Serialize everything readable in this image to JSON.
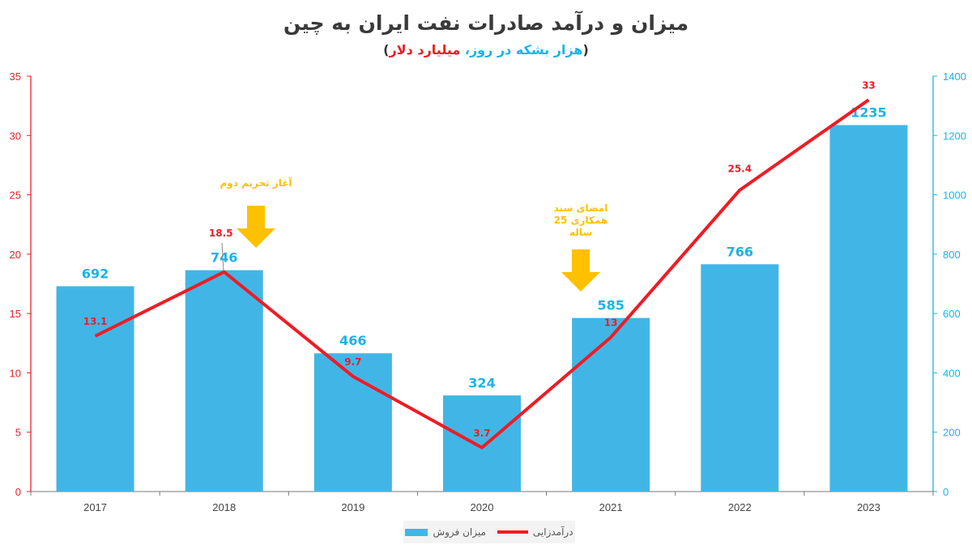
{
  "title": "میزان و درآمد صادرات نفت ایران به چین",
  "subtitle": {
    "open": "(",
    "part1": "هزار بشکه در روز،",
    "part2": "میلیارد دلار",
    "close": ")"
  },
  "colors": {
    "bar": "#41b6e6",
    "line": "#ee1c25",
    "left_axis": "#e8202a",
    "right_axis": "#19b5e5",
    "annotation": "#ffc000"
  },
  "chart_data": {
    "type": "bar+line",
    "categories": [
      "2017",
      "2018",
      "2019",
      "2020",
      "2021",
      "2022",
      "2023"
    ],
    "series": [
      {
        "name": "میزان فروش",
        "type": "bar",
        "axis": "right",
        "values": [
          692,
          746,
          466,
          324,
          585,
          766,
          1235
        ]
      },
      {
        "name": "درآمدزایی",
        "type": "line",
        "axis": "left",
        "values": [
          13.1,
          18.5,
          9.7,
          3.7,
          13,
          25.4,
          33
        ]
      }
    ],
    "left_axis": {
      "ylim": [
        0,
        35
      ],
      "ticks": [
        0,
        5,
        10,
        15,
        20,
        25,
        30,
        35
      ]
    },
    "right_axis": {
      "ylim": [
        0,
        1400
      ],
      "ticks": [
        0,
        200,
        400,
        600,
        800,
        1000,
        1200,
        1400
      ]
    },
    "grid": false,
    "legend": "bottom",
    "annotations": [
      {
        "category": "2018",
        "text": "آغاز تحریم دوم"
      },
      {
        "category": "2021",
        "text_lines": [
          "امضای سند",
          "همکاری 25",
          "ساله"
        ]
      }
    ]
  }
}
